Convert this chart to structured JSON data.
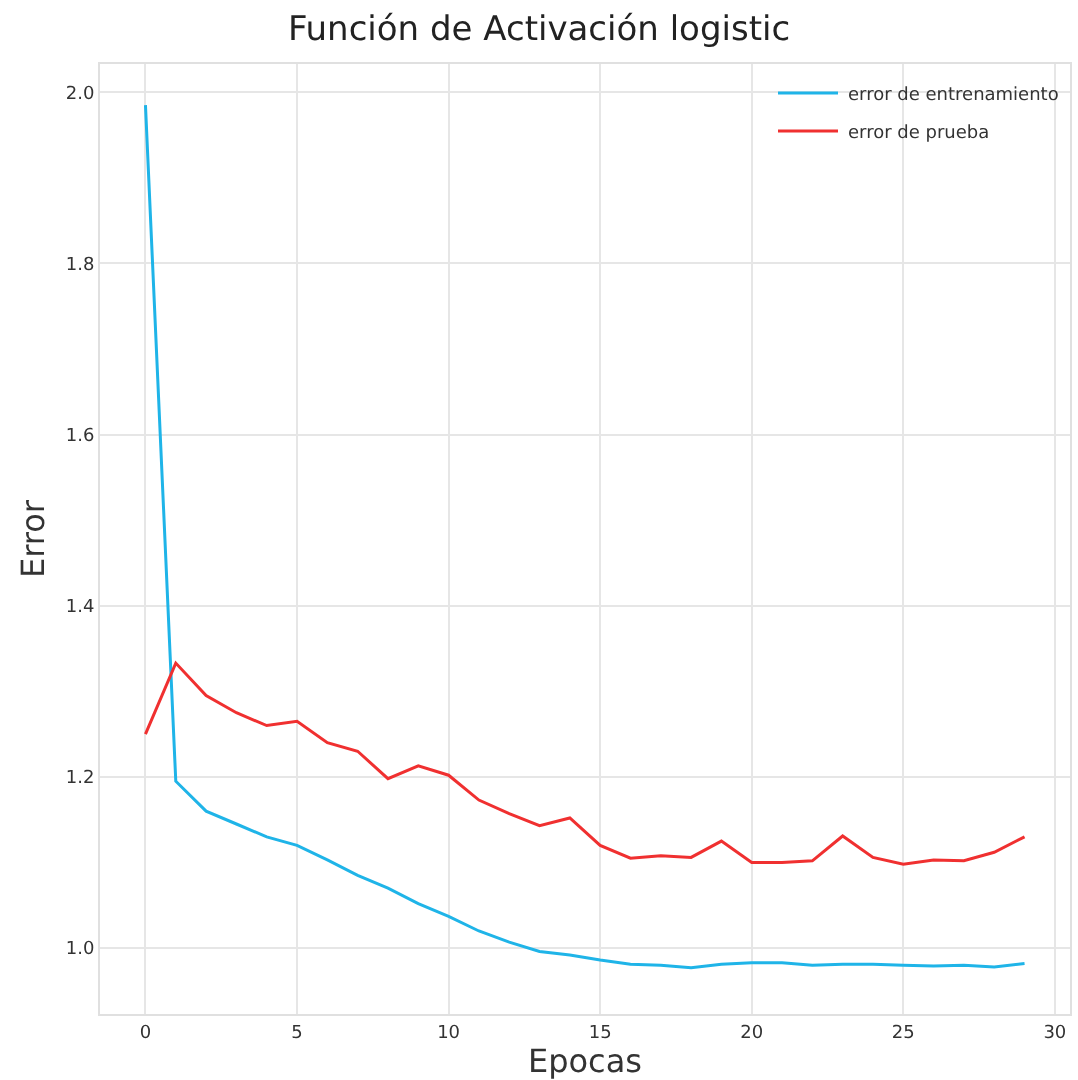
{
  "chart_data": {
    "type": "line",
    "title": "Función de Activación logistic",
    "xlabel": "Epocas",
    "ylabel": "Error",
    "x": [
      0,
      1,
      2,
      3,
      4,
      5,
      6,
      7,
      8,
      9,
      10,
      11,
      12,
      13,
      14,
      15,
      16,
      17,
      18,
      19,
      20,
      21,
      22,
      23,
      24,
      25,
      26,
      27,
      28,
      29
    ],
    "series": [
      {
        "name": "error de entrenamiento",
        "color": "#1fb4e8",
        "values": [
          1.985,
          1.195,
          1.16,
          1.145,
          1.13,
          1.12,
          1.103,
          1.085,
          1.07,
          1.052,
          1.037,
          1.02,
          1.007,
          0.996,
          0.992,
          0.986,
          0.981,
          0.98,
          0.977,
          0.981,
          0.983,
          0.983,
          0.98,
          0.981,
          0.981,
          0.98,
          0.979,
          0.98,
          0.978,
          0.982
        ]
      },
      {
        "name": "error de prueba",
        "color": "#f03030",
        "values": [
          1.25,
          1.333,
          1.295,
          1.275,
          1.26,
          1.265,
          1.24,
          1.23,
          1.198,
          1.213,
          1.202,
          1.173,
          1.157,
          1.143,
          1.152,
          1.12,
          1.105,
          1.108,
          1.106,
          1.125,
          1.1,
          1.1,
          1.102,
          1.131,
          1.106,
          1.098,
          1.103,
          1.102,
          1.112,
          1.13
        ]
      }
    ],
    "xlim": [
      -1.5,
      30.5
    ],
    "xticks": [
      0,
      5,
      10,
      15,
      20,
      25,
      30
    ],
    "ylim": [
      0.923,
      2.033
    ],
    "yticks": [
      {
        "value": 1.0,
        "label": "1.0"
      },
      {
        "value": 1.2,
        "label": "1.2"
      },
      {
        "value": 1.4,
        "label": "1.4"
      },
      {
        "value": 1.6,
        "label": "1.6"
      },
      {
        "value": 1.8,
        "label": "1.8"
      },
      {
        "value": 2.0,
        "label": "2.0"
      }
    ],
    "grid": true,
    "legend": "top right",
    "marker": "none",
    "line_style": "solid"
  }
}
